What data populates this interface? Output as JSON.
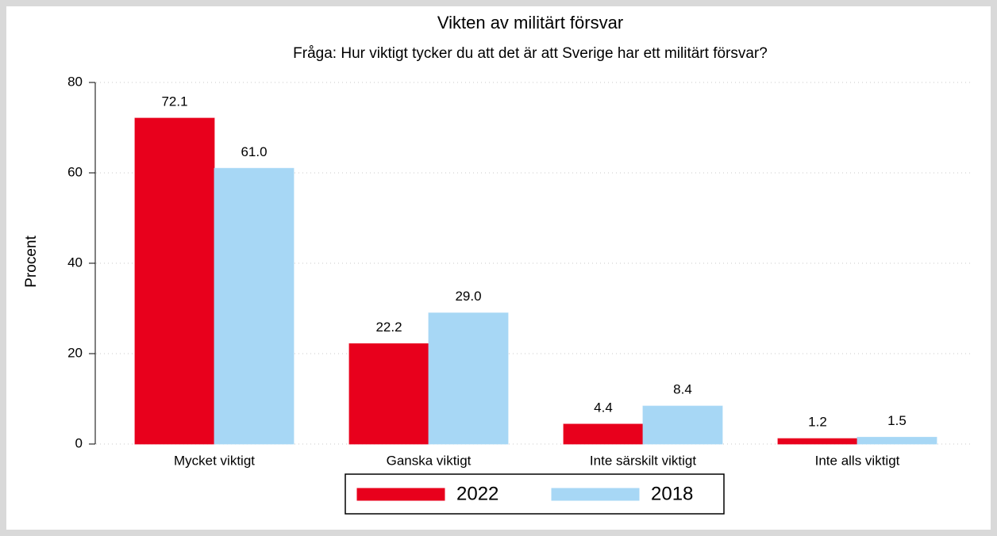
{
  "chart_data": {
    "type": "bar",
    "title": "Vikten av militärt försvar",
    "subtitle": "Fråga: Hur viktigt tycker du att det är att Sverige har ett militärt försvar?",
    "ylabel": "Procent",
    "categories": [
      "Mycket viktigt",
      "Ganska viktigt",
      "Inte särskilt viktigt",
      "Inte alls viktigt"
    ],
    "series": [
      {
        "name": "2022",
        "color": "#e8001c",
        "values": [
          72.1,
          22.2,
          4.4,
          1.2
        ],
        "value_labels": [
          "72.1",
          "22.2",
          "4.4",
          "1.2"
        ]
      },
      {
        "name": "2018",
        "color": "#a7d7f5",
        "values": [
          61,
          29,
          8.4,
          1.5
        ],
        "value_labels": [
          "61.0",
          "29.0",
          "8.4",
          "1.5"
        ]
      }
    ],
    "ylim": [
      0,
      80
    ],
    "yticks": [
      0,
      20,
      40,
      60,
      80
    ],
    "grid": true,
    "legend": "bottom"
  }
}
